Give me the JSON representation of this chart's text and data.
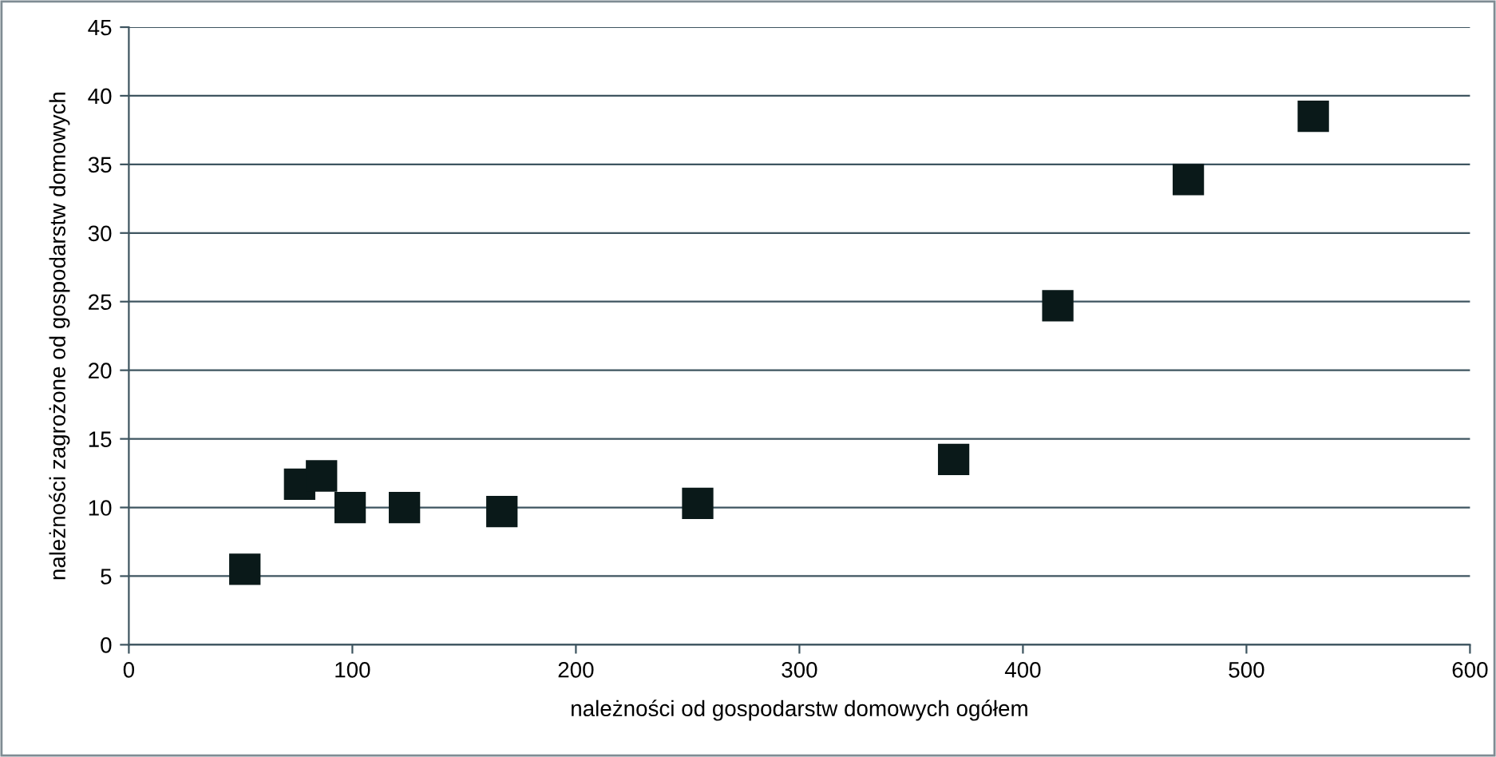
{
  "chart_data": {
    "type": "scatter",
    "xlabel": "należności od gospodarstw domowych ogółem",
    "ylabel": "należności zagrożone od gospodarstw domowych",
    "x": [
      51.9,
      76.4,
      86.2,
      99,
      123.3,
      166.9,
      254.5,
      369,
      415.6,
      474,
      529.9
    ],
    "values": [
      5.5,
      11.7,
      12.3,
      10.0,
      10.0,
      9.7,
      10.3,
      13.5,
      24.7,
      33.9,
      38.5
    ],
    "color": "#0a1919",
    "marker": "square",
    "xlim": [
      0,
      600
    ],
    "xticks": [
      0,
      100,
      200,
      300,
      400,
      500,
      600
    ],
    "ylim": [
      0,
      45
    ],
    "yticks": [
      0,
      5,
      10,
      15,
      20,
      25,
      30,
      35,
      40,
      45
    ],
    "grid": "y",
    "legend": false
  }
}
